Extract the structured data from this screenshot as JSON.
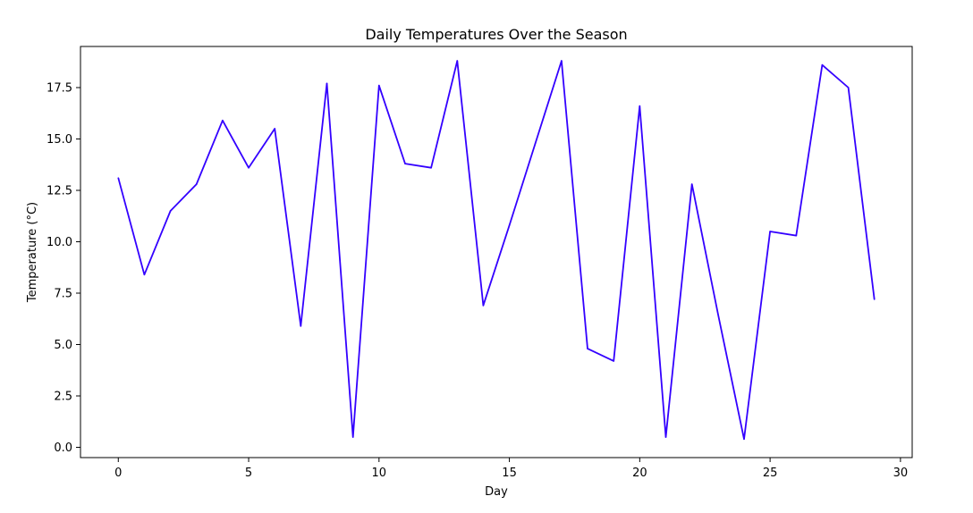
{
  "chart_data": {
    "type": "line",
    "title": "Daily Temperatures Over the Season",
    "xlabel": "Day",
    "ylabel": "Temperature (°C)",
    "xlim": [
      -1.45,
      30.45
    ],
    "ylim": [
      -0.5,
      19.5
    ],
    "xticks": [
      0,
      5,
      10,
      15,
      20,
      25,
      30
    ],
    "xtick_labels": [
      "0",
      "5",
      "10",
      "15",
      "20",
      "25",
      "30"
    ],
    "yticks": [
      0,
      2.5,
      5,
      7.5,
      10,
      12.5,
      15,
      17.5
    ],
    "ytick_labels": [
      "0.0",
      "2.5",
      "5.0",
      "7.5",
      "10.0",
      "12.5",
      "15.0",
      "17.5"
    ],
    "grid": false,
    "legend": "none",
    "series": [
      {
        "color": "#3300ff",
        "x": [
          0,
          1,
          2,
          3,
          4,
          5,
          6,
          7,
          8,
          9,
          10,
          11,
          12,
          13,
          14,
          15,
          16,
          17,
          18,
          19,
          20,
          21,
          22,
          23,
          24,
          25,
          26,
          27,
          28,
          29
        ],
        "y": [
          13.1,
          8.4,
          11.5,
          12.8,
          15.9,
          13.6,
          15.5,
          5.9,
          17.7,
          0.5,
          17.6,
          13.8,
          13.6,
          18.8,
          6.9,
          10.8,
          14.8,
          18.8,
          4.8,
          4.2,
          16.6,
          0.5,
          12.8,
          6.5,
          0.4,
          10.5,
          10.3,
          18.6,
          17.5,
          7.2
        ]
      }
    ]
  }
}
